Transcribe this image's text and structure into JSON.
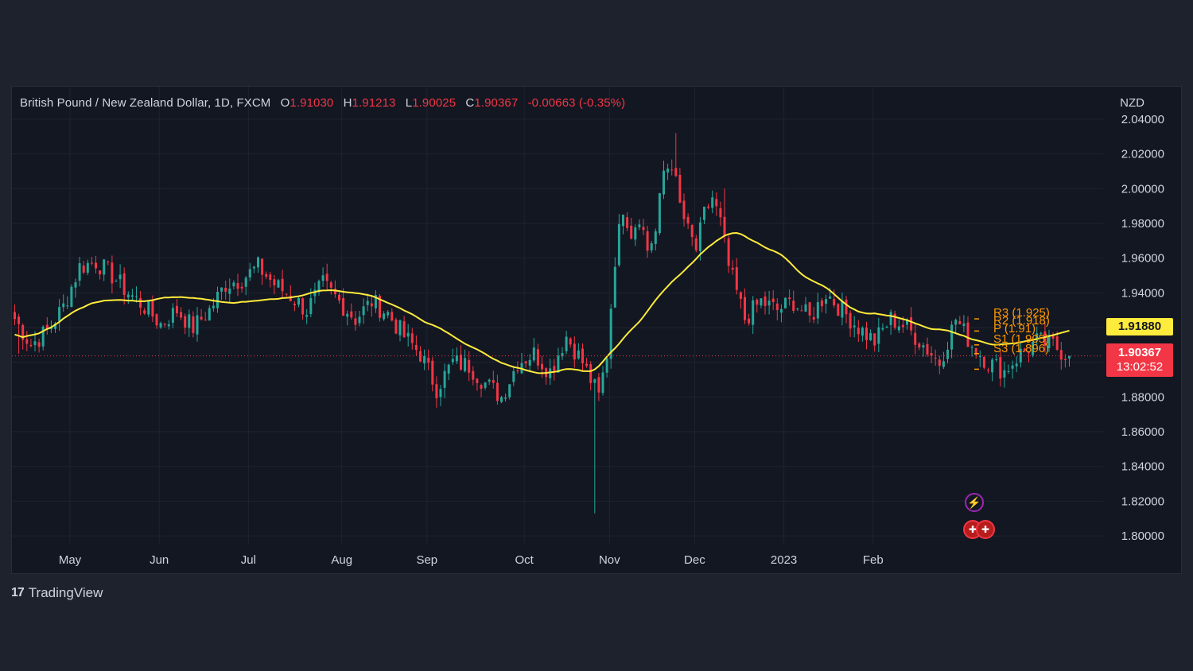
{
  "legend": {
    "symbol": "British Pound / New Zealand Dollar, 1D, FXCM",
    "o_label": "O",
    "o": "1.91030",
    "h_label": "H",
    "h": "1.91213",
    "l_label": "L",
    "l": "1.90025",
    "c_label": "C",
    "c": "1.90367",
    "change": "-0.00663 (-0.35%)"
  },
  "currency": "NZD",
  "tags": {
    "ma_value": "1.91880",
    "last_price": "1.90367",
    "countdown": "13:02:52"
  },
  "pivots": [
    "R3 (1.925)",
    "R2 (1.918)",
    "P (1.91)",
    "S1 (1.905)",
    "S3 (1.896)"
  ],
  "brand": {
    "logo": "17",
    "name": "TradingView"
  },
  "colors": {
    "background": "#131722",
    "up": "#26a69a",
    "down": "#f23645",
    "ma": "#ffeb3b",
    "pivot": "#ff9800",
    "grid": "#1f2330"
  },
  "chart_data": {
    "type": "candlestick",
    "x_ticks": [
      "May",
      "Jun",
      "Jul",
      "Aug",
      "Sep",
      "Oct",
      "Nov",
      "Dec",
      "2023",
      "Feb"
    ],
    "y_ticks": [
      "1.80000",
      "1.82000",
      "1.84000",
      "1.86000",
      "1.88000",
      "1.90000",
      "1.92000",
      "1.94000",
      "1.96000",
      "1.98000",
      "2.00000",
      "2.02000",
      "2.04000"
    ],
    "ylim": [
      1.795,
      2.045
    ],
    "last_close": 1.90367,
    "moving_average_last": 1.9188,
    "anchors": [
      [
        0,
        1.925
      ],
      [
        4,
        1.91
      ],
      [
        8,
        1.918
      ],
      [
        12,
        1.932
      ],
      [
        16,
        1.955
      ],
      [
        20,
        1.958
      ],
      [
        24,
        1.95
      ],
      [
        28,
        1.94
      ],
      [
        32,
        1.932
      ],
      [
        36,
        1.922
      ],
      [
        40,
        1.93
      ],
      [
        44,
        1.92
      ],
      [
        48,
        1.93
      ],
      [
        52,
        1.945
      ],
      [
        56,
        1.948
      ],
      [
        60,
        1.955
      ],
      [
        64,
        1.945
      ],
      [
        68,
        1.938
      ],
      [
        72,
        1.93
      ],
      [
        76,
        1.945
      ],
      [
        80,
        1.935
      ],
      [
        84,
        1.925
      ],
      [
        88,
        1.935
      ],
      [
        92,
        1.928
      ],
      [
        96,
        1.915
      ],
      [
        100,
        1.905
      ],
      [
        104,
        1.885
      ],
      [
        108,
        1.9
      ],
      [
        112,
        1.898
      ],
      [
        116,
        1.888
      ],
      [
        120,
        1.88
      ],
      [
        124,
        1.9
      ],
      [
        128,
        1.905
      ],
      [
        132,
        1.895
      ],
      [
        136,
        1.915
      ],
      [
        140,
        1.9
      ],
      [
        142,
        1.89
      ],
      [
        144,
        1.88
      ],
      [
        146,
        1.905
      ],
      [
        148,
        1.96
      ],
      [
        150,
        1.99
      ],
      [
        152,
        1.975
      ],
      [
        154,
        1.985
      ],
      [
        156,
        1.965
      ],
      [
        158,
        1.975
      ],
      [
        160,
        2.01
      ],
      [
        162,
        2.015
      ],
      [
        164,
        1.99
      ],
      [
        166,
        1.975
      ],
      [
        168,
        1.965
      ],
      [
        170,
        1.985
      ],
      [
        172,
        1.995
      ],
      [
        174,
        1.98
      ],
      [
        176,
        1.955
      ],
      [
        178,
        1.94
      ],
      [
        180,
        1.925
      ],
      [
        184,
        1.935
      ],
      [
        188,
        1.93
      ],
      [
        192,
        1.935
      ],
      [
        196,
        1.925
      ],
      [
        200,
        1.94
      ],
      [
        204,
        1.93
      ],
      [
        208,
        1.92
      ],
      [
        212,
        1.912
      ],
      [
        216,
        1.925
      ],
      [
        220,
        1.92
      ],
      [
        224,
        1.91
      ],
      [
        228,
        1.9
      ],
      [
        232,
        1.925
      ],
      [
        236,
        1.91
      ],
      [
        240,
        1.9
      ],
      [
        244,
        1.895
      ],
      [
        248,
        1.905
      ],
      [
        252,
        1.912
      ],
      [
        256,
        1.91
      ],
      [
        260,
        1.903
      ]
    ],
    "spikes": [
      {
        "i": 143,
        "low": 1.813
      },
      {
        "i": 163,
        "high": 2.032
      },
      {
        "i": 175,
        "high": 2.0
      },
      {
        "i": 1,
        "low": 1.905
      }
    ]
  }
}
